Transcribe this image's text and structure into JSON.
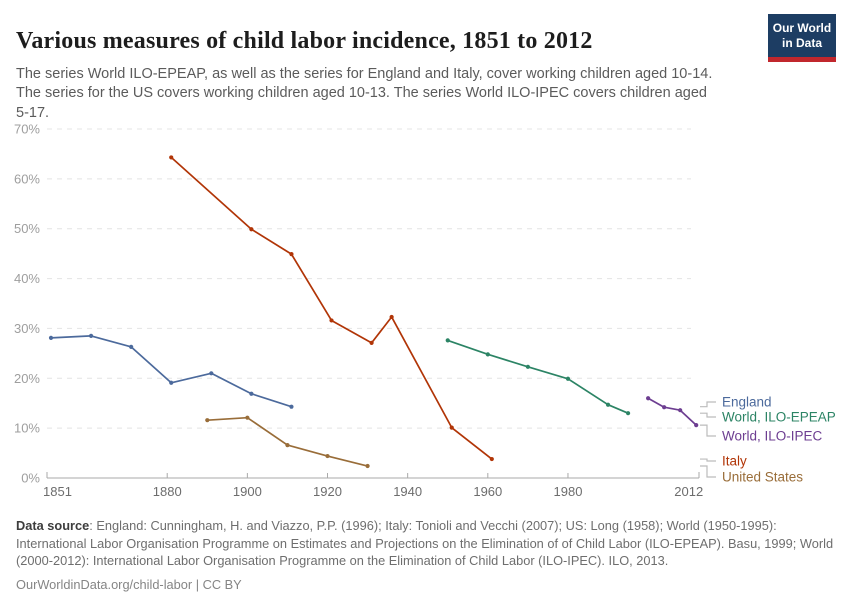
{
  "header": {
    "title": "Various measures of child labor incidence, 1851 to 2012",
    "subtitle": "The series World ILO-EPEAP, as well as the series for England and Italy, cover working children aged 10-14. The series for the US covers working children aged 10-13. The series World ILO-IPEC covers children aged 5-17.",
    "logo": {
      "line1": "Our World",
      "line2": "in Data",
      "bg_color": "#1d3d63",
      "stripe_color": "#c1272d"
    }
  },
  "chart_data": {
    "type": "line",
    "title": "Various measures of child labor incidence, 1851 to 2012",
    "xlabel": "",
    "ylabel": "",
    "xlim": [
      1851,
      2012
    ],
    "ylim": [
      0,
      70
    ],
    "x_ticks": [
      1851,
      1880,
      1900,
      1920,
      1940,
      1960,
      1980,
      2012
    ],
    "y_ticks": [
      0,
      10,
      20,
      30,
      40,
      50,
      60,
      70
    ],
    "y_tick_suffix": "%",
    "grid": "horizontal-dashed",
    "legend_position": "right",
    "series": [
      {
        "name": "England",
        "color": "#4C6A9C",
        "points": [
          [
            1851,
            28.1
          ],
          [
            1861,
            28.5
          ],
          [
            1871,
            26.3
          ],
          [
            1881,
            19.1
          ],
          [
            1891,
            21.0
          ],
          [
            1901,
            16.9
          ],
          [
            1911,
            14.3
          ]
        ]
      },
      {
        "name": "World, ILO-EPEAP",
        "color": "#2C8465",
        "points": [
          [
            1950,
            27.6
          ],
          [
            1960,
            24.8
          ],
          [
            1970,
            22.3
          ],
          [
            1980,
            19.9
          ],
          [
            1990,
            14.7
          ],
          [
            1995,
            13.0
          ]
        ]
      },
      {
        "name": "World, ILO-IPEC",
        "color": "#6D3E91",
        "points": [
          [
            2000,
            16.0
          ],
          [
            2004,
            14.2
          ],
          [
            2008,
            13.6
          ],
          [
            2012,
            10.6
          ]
        ]
      },
      {
        "name": "Italy",
        "color": "#B13507",
        "points": [
          [
            1881,
            64.3
          ],
          [
            1901,
            49.9
          ],
          [
            1911,
            44.9
          ],
          [
            1921,
            31.6
          ],
          [
            1931,
            27.1
          ],
          [
            1936,
            32.3
          ],
          [
            1951,
            10.1
          ],
          [
            1961,
            3.8
          ]
        ]
      },
      {
        "name": "United States",
        "color": "#996D39",
        "points": [
          [
            1890,
            11.6
          ],
          [
            1900,
            12.1
          ],
          [
            1910,
            6.6
          ],
          [
            1920,
            4.4
          ],
          [
            1930,
            2.4
          ]
        ]
      }
    ],
    "style_colors": {
      "gridline": "#e4e4e4",
      "axis": "#a9a9a9",
      "y_tick_label": "#9e9e9e",
      "x_tick_label": "#6d6d6d",
      "legend_connector": "#bcbcbc"
    }
  },
  "footer": {
    "source_label": "Data source",
    "source_text": ": England: Cunningham, H. and Viazzo, P.P. (1996); Italy: Tonioli and Vecchi (2007); US: Long (1958); World (1950-1995): International Labor Organisation Programme on Estimates and Projections on the Elimination of of Child Labor (ILO-EPEAP). Basu, 1999; World (2000-2012): International Labor Organisation Programme on the Elimination of Child Labor (ILO-IPEC). ILO, 2013.",
    "license_text": "OurWorldinData.org/child-labor | CC BY"
  }
}
